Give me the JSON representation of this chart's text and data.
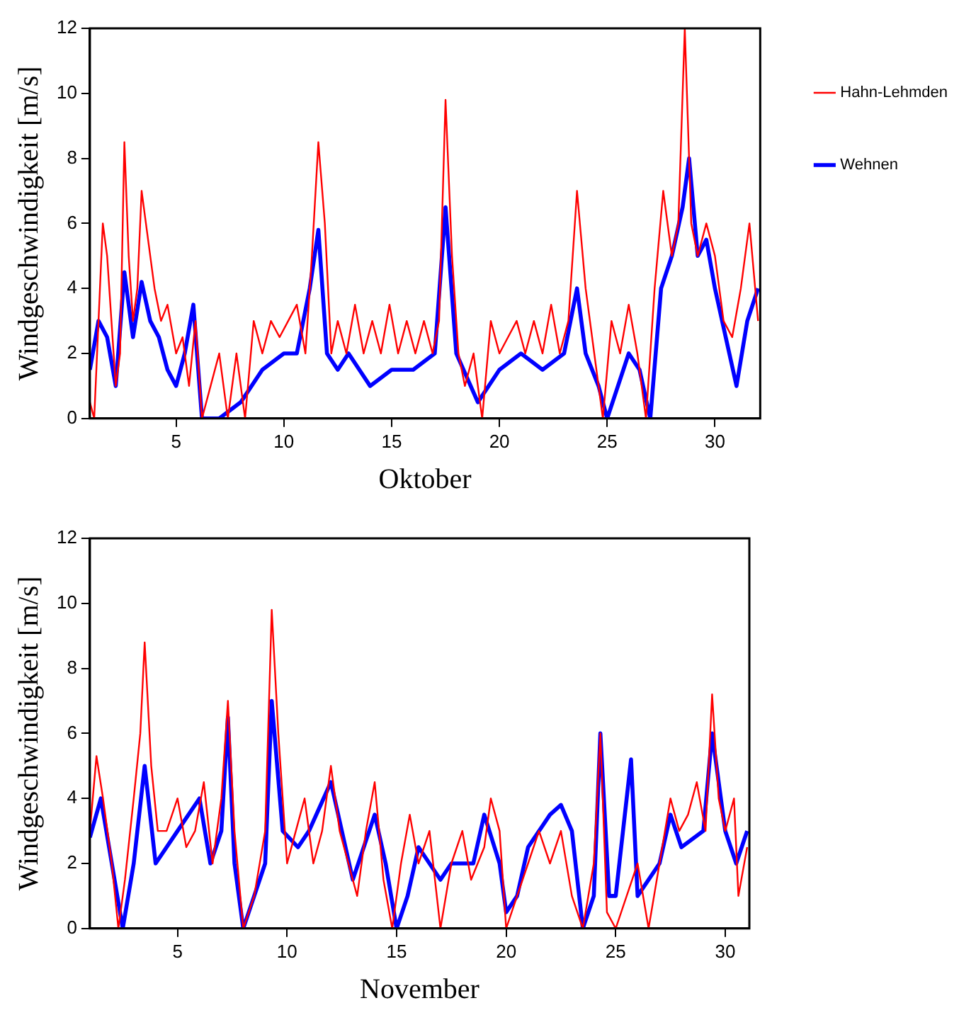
{
  "chart_data": [
    {
      "type": "line",
      "xlabel": "Oktober",
      "ylabel": "Windgeschwindigkeit [m/s]",
      "xlim": [
        1,
        32.1
      ],
      "xticks": [
        5,
        10,
        15,
        20,
        25,
        30
      ],
      "ylim": [
        0,
        12
      ],
      "yticks": [
        0,
        2,
        4,
        6,
        8,
        10,
        12
      ],
      "legend": "right",
      "grid": false,
      "marker": "none",
      "line_style": "solid",
      "series": [
        {
          "name": "Hahn-Lehmden",
          "color": "#ff0000",
          "x": [
            1.0,
            1.2,
            1.4,
            1.6,
            1.8,
            2.0,
            2.2,
            2.4,
            2.6,
            2.8,
            3.0,
            3.2,
            3.4,
            3.6,
            3.8,
            4.0,
            4.3,
            4.6,
            5.0,
            5.3,
            5.6,
            5.9,
            6.2,
            6.6,
            7.0,
            7.4,
            7.8,
            8.2,
            8.6,
            9.0,
            9.4,
            9.8,
            10.2,
            10.6,
            11.0,
            11.3,
            11.6,
            11.9,
            12.2,
            12.5,
            12.9,
            13.3,
            13.7,
            14.1,
            14.5,
            14.9,
            15.3,
            15.7,
            16.1,
            16.5,
            16.9,
            17.2,
            17.5,
            17.8,
            18.1,
            18.4,
            18.8,
            19.2,
            19.6,
            20.0,
            20.4,
            20.8,
            21.2,
            21.6,
            22.0,
            22.4,
            22.8,
            23.2,
            23.6,
            24.0,
            24.4,
            24.8,
            25.2,
            25.6,
            26.0,
            26.4,
            26.8,
            27.2,
            27.6,
            28.0,
            28.3,
            28.6,
            28.9,
            29.2,
            29.6,
            30.0,
            30.4,
            30.8,
            31.2,
            31.6,
            32.0
          ],
          "values": [
            0.5,
            0,
            3,
            6,
            5,
            3,
            1,
            2,
            8.5,
            5,
            3,
            4,
            7,
            6,
            5,
            4,
            3,
            3.5,
            2,
            2.5,
            1,
            3,
            0,
            1,
            2,
            0,
            2,
            0,
            3,
            2,
            3,
            2.5,
            3,
            3.5,
            2,
            5,
            8.5,
            6,
            2,
            3,
            2,
            3.5,
            2,
            3,
            2,
            3.5,
            2,
            3,
            2,
            3,
            2,
            3,
            9.8,
            5,
            2,
            1,
            2,
            0,
            3,
            2,
            2.5,
            3,
            2,
            3,
            2,
            3.5,
            2,
            3,
            7,
            4,
            2,
            0,
            3,
            2,
            3.5,
            2,
            0,
            4,
            7,
            5,
            6,
            12,
            6,
            5,
            6,
            5,
            3,
            2.5,
            4,
            6,
            3
          ]
        },
        {
          "name": "Wehnen",
          "color": "#0000ff",
          "x": [
            1.0,
            1.4,
            1.8,
            2.2,
            2.6,
            3.0,
            3.4,
            3.8,
            4.2,
            4.6,
            5.0,
            5.4,
            5.8,
            6.2,
            7,
            8,
            9,
            10,
            10.6,
            11.2,
            11.6,
            12,
            12.5,
            13,
            14,
            15,
            16,
            17,
            17.5,
            18,
            19,
            20,
            21,
            22,
            23,
            23.6,
            24,
            24.6,
            25,
            26,
            26.5,
            27,
            27.5,
            28,
            28.5,
            28.8,
            29.2,
            29.6,
            30,
            30.5,
            31,
            31.5,
            32
          ],
          "values": [
            1.5,
            3,
            2.5,
            1,
            4.5,
            2.5,
            4.2,
            3,
            2.5,
            1.5,
            1,
            2,
            3.5,
            0,
            0,
            0.5,
            1.5,
            2,
            2,
            4,
            5.8,
            2,
            1.5,
            2,
            1,
            1.5,
            1.5,
            2,
            6.5,
            2,
            0.5,
            1.5,
            2,
            1.5,
            2,
            4,
            2,
            1,
            0,
            2,
            1.5,
            0,
            4,
            5,
            6.5,
            8,
            5,
            5.5,
            4,
            2.5,
            1,
            3,
            4
          ]
        }
      ]
    },
    {
      "type": "line",
      "xlabel": "November",
      "ylabel": "Windgeschwindigkeit [m/s]",
      "xlim": [
        1,
        31.1
      ],
      "xticks": [
        5,
        10,
        15,
        20,
        25,
        30
      ],
      "ylim": [
        0,
        12
      ],
      "yticks": [
        0,
        2,
        4,
        6,
        8,
        10,
        12
      ],
      "grid": false,
      "marker": "none",
      "line_style": "solid",
      "series": [
        {
          "color": "#ff0000",
          "x": [
            1,
            1.3,
            1.6,
            2,
            2.3,
            2.6,
            3,
            3.3,
            3.5,
            3.8,
            4.1,
            4.5,
            5,
            5.4,
            5.8,
            6.2,
            6.6,
            7,
            7.3,
            7.6,
            8,
            8.5,
            9,
            9.3,
            9.6,
            10,
            10.4,
            10.8,
            11.2,
            11.6,
            12,
            12.4,
            12.8,
            13.2,
            13.6,
            14,
            14.4,
            14.8,
            15.2,
            15.6,
            16,
            16.5,
            17,
            17.5,
            18,
            18.4,
            19,
            19.3,
            19.7,
            20,
            20.5,
            21,
            21.5,
            22,
            22.5,
            23,
            23.5,
            24,
            24.3,
            24.6,
            25,
            25.5,
            26,
            26.5,
            27,
            27.5,
            27.9,
            28.3,
            28.7,
            29.1,
            29.4,
            29.7,
            30,
            30.4,
            30.6,
            31
          ],
          "values": [
            3,
            5.3,
            4,
            2,
            0,
            1.5,
            4,
            6,
            8.8,
            5,
            3,
            3,
            4,
            2.5,
            3,
            4.5,
            2,
            4,
            7,
            3,
            0,
            1,
            3,
            9.8,
            6,
            2,
            3,
            4,
            2,
            3,
            5,
            3,
            2,
            1,
            3,
            4.5,
            1.5,
            0,
            2,
            3.5,
            2,
            3,
            0,
            2,
            3,
            1.5,
            2.5,
            4,
            3,
            0,
            1,
            2,
            3,
            2,
            3,
            1,
            0,
            2,
            6,
            0.5,
            0,
            1,
            2,
            0,
            2,
            4,
            3,
            3.5,
            4.5,
            3,
            7.2,
            4,
            3,
            4,
            1,
            2.5
          ]
        },
        {
          "color": "#0000ff",
          "x": [
            1,
            1.5,
            2,
            2.5,
            3,
            3.5,
            4,
            5,
            6,
            6.5,
            7,
            7.3,
            7.6,
            8,
            9,
            9.3,
            9.8,
            10.5,
            11,
            12,
            13,
            14,
            14.5,
            15,
            15.5,
            16,
            17,
            17.5,
            18,
            18.5,
            19,
            19.7,
            20,
            20.5,
            21,
            22,
            22.5,
            23,
            23.5,
            24,
            24.3,
            24.7,
            25,
            25.7,
            26,
            27,
            27.5,
            28,
            29,
            29.4,
            30,
            30.5,
            31
          ],
          "values": [
            2.8,
            4,
            2,
            0,
            2,
            5,
            2,
            3,
            4,
            2,
            3,
            6.5,
            2,
            0,
            2,
            7,
            3,
            2.5,
            3,
            4.5,
            1.5,
            3.5,
            2,
            0,
            1,
            2.5,
            1.5,
            2,
            2,
            2,
            3.5,
            2,
            0.5,
            1,
            2.5,
            3.5,
            3.8,
            3,
            0,
            1,
            6,
            1,
            1,
            5.2,
            1,
            2,
            3.5,
            2.5,
            3,
            6,
            3,
            2,
            3
          ]
        }
      ]
    }
  ]
}
